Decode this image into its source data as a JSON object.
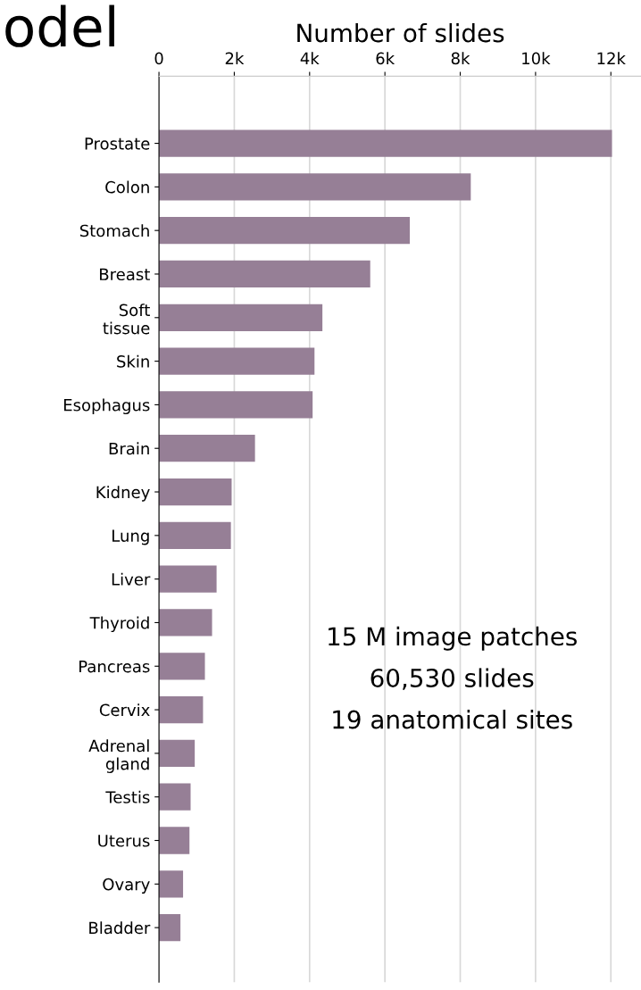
{
  "chart_data": {
    "type": "bar",
    "orientation": "horizontal",
    "title": "odel",
    "xlabel": "Number of slides",
    "categories": [
      "Prostate",
      "Colon",
      "Stomach",
      "Breast",
      "Soft\ntissue",
      "Skin",
      "Esophagus",
      "Brain",
      "Kidney",
      "Lung",
      "Liver",
      "Thyroid",
      "Pancreas",
      "Cervix",
      "Adrenal\ngland",
      "Testis",
      "Uterus",
      "Ovary",
      "Bladder"
    ],
    "values": [
      12030,
      8280,
      6660,
      5610,
      4340,
      4130,
      4080,
      2550,
      1930,
      1910,
      1530,
      1410,
      1220,
      1170,
      950,
      840,
      810,
      640,
      570
    ],
    "color": "#967f96",
    "xlim": [
      0,
      12800
    ],
    "xticks": [
      0,
      {
        "value": 2000,
        "label": "2k"
      },
      {
        "value": 4000,
        "label": "4k"
      },
      {
        "value": 6000,
        "label": "6k"
      },
      {
        "value": 8000,
        "label": "8k"
      },
      {
        "value": 10000,
        "label": "10k"
      },
      {
        "value": 12000,
        "label": "12k"
      }
    ],
    "grid": "x",
    "annotations": [
      "15 M image patches",
      "60,530 slides",
      "19 anatomical sites"
    ]
  }
}
